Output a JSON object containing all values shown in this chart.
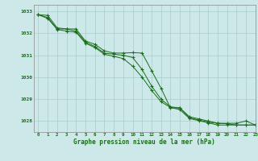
{
  "bg_color": "#cce8e8",
  "grid_color": "#aacccc",
  "line_color": "#1a6e1a",
  "xlabel": "Graphe pression niveau de la mer (hPa)",
  "xlim": [
    -0.5,
    23
  ],
  "ylim": [
    1027.5,
    1033.3
  ],
  "yticks": [
    1028,
    1029,
    1030,
    1031,
    1032,
    1033
  ],
  "xticks": [
    0,
    1,
    2,
    3,
    4,
    5,
    6,
    7,
    8,
    9,
    10,
    11,
    12,
    13,
    14,
    15,
    16,
    17,
    18,
    19,
    20,
    21,
    22,
    23
  ],
  "series1": [
    1032.85,
    1032.82,
    1032.25,
    1032.2,
    1032.2,
    1031.65,
    1031.5,
    1031.2,
    1031.1,
    1031.1,
    1031.12,
    1031.1,
    1030.3,
    1029.5,
    1028.6,
    1028.6,
    1028.2,
    1028.1,
    1028.0,
    1027.9,
    1027.9,
    1027.9,
    1028.0,
    1027.82
  ],
  "series2": [
    1032.85,
    1032.72,
    1032.2,
    1032.2,
    1032.1,
    1031.6,
    1031.4,
    1031.1,
    1031.05,
    1031.0,
    1030.9,
    1030.35,
    1029.6,
    1029.0,
    1028.65,
    1028.6,
    1028.15,
    1028.05,
    1027.95,
    1027.9,
    1027.88,
    1027.82,
    1027.82,
    1027.82
  ],
  "series3": [
    1032.85,
    1032.68,
    1032.18,
    1032.1,
    1032.05,
    1031.55,
    1031.35,
    1031.05,
    1030.95,
    1030.85,
    1030.5,
    1030.0,
    1029.4,
    1028.88,
    1028.62,
    1028.52,
    1028.12,
    1028.02,
    1027.92,
    1027.82,
    1027.82,
    1027.82,
    1027.82,
    1027.82
  ]
}
